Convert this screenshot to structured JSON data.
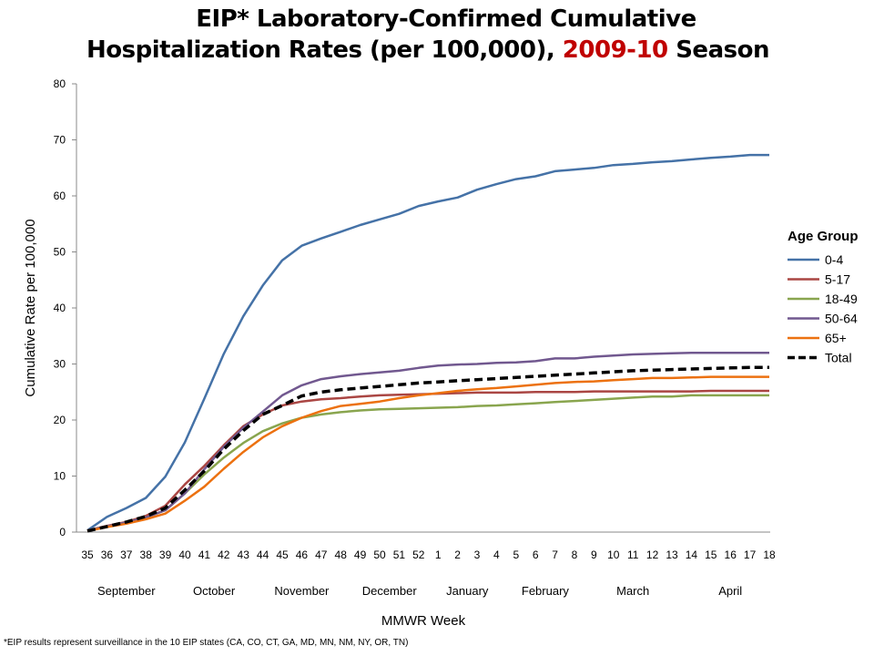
{
  "chart_data": {
    "type": "line",
    "title_part1": "EIP* Laboratory-Confirmed Cumulative",
    "title_part2": "Hospitalization Rates (per 100,000),",
    "title_season": "2009-10",
    "title_part3": "Season",
    "ylabel": "Cumulative Rate per 100,000",
    "xlabel": "MMWR Week",
    "ylim": [
      0,
      80
    ],
    "yticks": [
      0,
      10,
      20,
      30,
      40,
      50,
      60,
      70,
      80
    ],
    "x": [
      "35",
      "36",
      "37",
      "38",
      "39",
      "40",
      "41",
      "42",
      "43",
      "44",
      "45",
      "46",
      "47",
      "48",
      "49",
      "50",
      "51",
      "52",
      "1",
      "2",
      "3",
      "4",
      "5",
      "6",
      "7",
      "8",
      "9",
      "10",
      "11",
      "12",
      "13",
      "14",
      "15",
      "16",
      "17",
      "18"
    ],
    "months": [
      {
        "label": "September",
        "week": "37"
      },
      {
        "label": "October",
        "week": "41.5"
      },
      {
        "label": "November",
        "week": "46"
      },
      {
        "label": "December",
        "week": "50.5"
      },
      {
        "label": "January",
        "week": "2.5"
      },
      {
        "label": "February",
        "week": "6.5"
      },
      {
        "label": "March",
        "week": "11"
      },
      {
        "label": "April",
        "week": "16"
      }
    ],
    "legend_title": "Age Group",
    "legend_position": "right",
    "grid": false,
    "series": [
      {
        "name": "0-4",
        "color": "#4572a7",
        "dashed": false,
        "values": [
          0.3,
          2.7,
          4.3,
          6.1,
          9.9,
          16,
          23.8,
          31.8,
          38.5,
          44,
          48.5,
          51.1,
          52.4,
          53.6,
          54.8,
          55.8,
          56.8,
          58.2,
          59,
          59.7,
          61.1,
          62.1,
          63,
          63.5,
          64.4,
          64.7,
          65,
          65.5,
          65.7,
          66,
          66.2,
          66.5,
          66.8,
          67,
          67.3,
          67.3
        ]
      },
      {
        "name": "5-17",
        "color": "#aa4643",
        "dashed": false,
        "values": [
          0.3,
          1.1,
          1.8,
          2.9,
          4.7,
          8.5,
          11.8,
          15.5,
          18.9,
          21,
          22.6,
          23.3,
          23.7,
          23.9,
          24.2,
          24.4,
          24.5,
          24.6,
          24.7,
          24.8,
          24.9,
          24.9,
          24.9,
          25,
          25,
          25,
          25.1,
          25.1,
          25.1,
          25.1,
          25.1,
          25.1,
          25.2,
          25.2,
          25.2,
          25.2
        ]
      },
      {
        "name": "18-49",
        "color": "#89a54e",
        "dashed": false,
        "values": [
          0.3,
          1,
          1.7,
          2.6,
          3.9,
          6.9,
          10.3,
          13.3,
          15.9,
          18,
          19.4,
          20.4,
          21,
          21.4,
          21.7,
          21.9,
          22,
          22.1,
          22.2,
          22.3,
          22.5,
          22.6,
          22.8,
          23,
          23.2,
          23.4,
          23.6,
          23.8,
          24,
          24.2,
          24.2,
          24.4,
          24.4,
          24.4,
          24.4,
          24.4
        ]
      },
      {
        "name": "50-64",
        "color": "#71588f",
        "dashed": false,
        "values": [
          0.3,
          1,
          1.7,
          2.6,
          3.9,
          6.9,
          11.2,
          15.2,
          18.6,
          21.5,
          24.4,
          26.2,
          27.3,
          27.8,
          28.2,
          28.5,
          28.8,
          29.3,
          29.7,
          29.9,
          30,
          30.2,
          30.3,
          30.5,
          31,
          31,
          31.3,
          31.5,
          31.7,
          31.8,
          31.9,
          32,
          32,
          32,
          32,
          32
        ]
      },
      {
        "name": "65+",
        "color": "#ec7110",
        "dashed": false,
        "values": [
          0.2,
          0.9,
          1.5,
          2.3,
          3.3,
          5.6,
          8.1,
          11.3,
          14.3,
          16.9,
          18.9,
          20.4,
          21.6,
          22.5,
          22.9,
          23.3,
          23.9,
          24.4,
          24.8,
          25.2,
          25.5,
          25.7,
          26,
          26.3,
          26.6,
          26.8,
          26.9,
          27.1,
          27.3,
          27.5,
          27.5,
          27.6,
          27.7,
          27.7,
          27.7,
          27.7
        ]
      },
      {
        "name": "Total",
        "color": "#000000",
        "dashed": true,
        "values": [
          0.2,
          1,
          1.8,
          2.8,
          4.3,
          7.5,
          10.9,
          14.8,
          18.1,
          21,
          22.6,
          24.3,
          25,
          25.4,
          25.7,
          26,
          26.3,
          26.6,
          26.8,
          27,
          27.2,
          27.4,
          27.6,
          27.8,
          28,
          28.2,
          28.4,
          28.6,
          28.8,
          28.9,
          29,
          29.1,
          29.2,
          29.3,
          29.4,
          29.4
        ]
      }
    ],
    "footnote": "*EIP results represent surveillance in the 10 EIP states (CA, CO, CT, GA, MD, MN, NM, NY, OR, TN)"
  }
}
